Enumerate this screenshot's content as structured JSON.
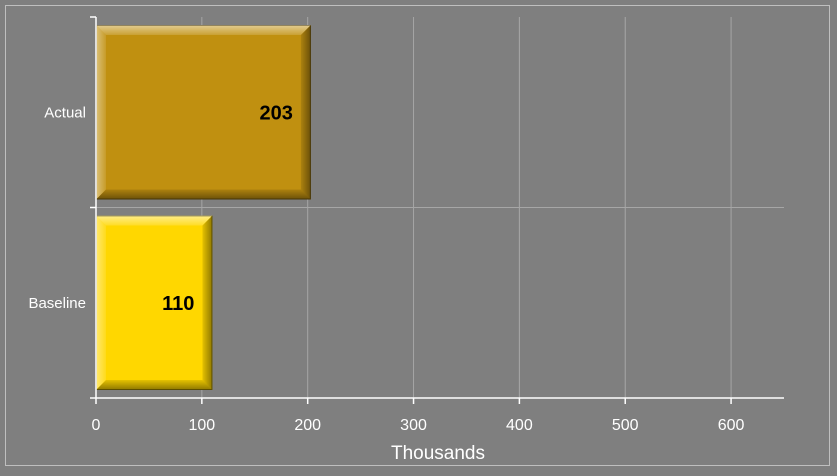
{
  "chart_data": {
    "type": "bar",
    "orientation": "horizontal",
    "categories": [
      "Actual",
      "Baseline"
    ],
    "values": [
      203,
      110
    ],
    "data_labels": [
      "203",
      "110"
    ],
    "bar_colors": [
      "#C09010",
      "#FFD700"
    ],
    "xlabel": "Thousands",
    "ylabel": "",
    "xlim": [
      0,
      650
    ],
    "xticks": [
      0,
      100,
      200,
      300,
      400,
      500,
      600
    ],
    "grid": true,
    "legend": "none"
  },
  "colors": {
    "background": "#7f7f7f",
    "gridline": "#a6a6a6",
    "axis": "#ffffff",
    "text": "#ffffff",
    "data_label": "#000000"
  }
}
